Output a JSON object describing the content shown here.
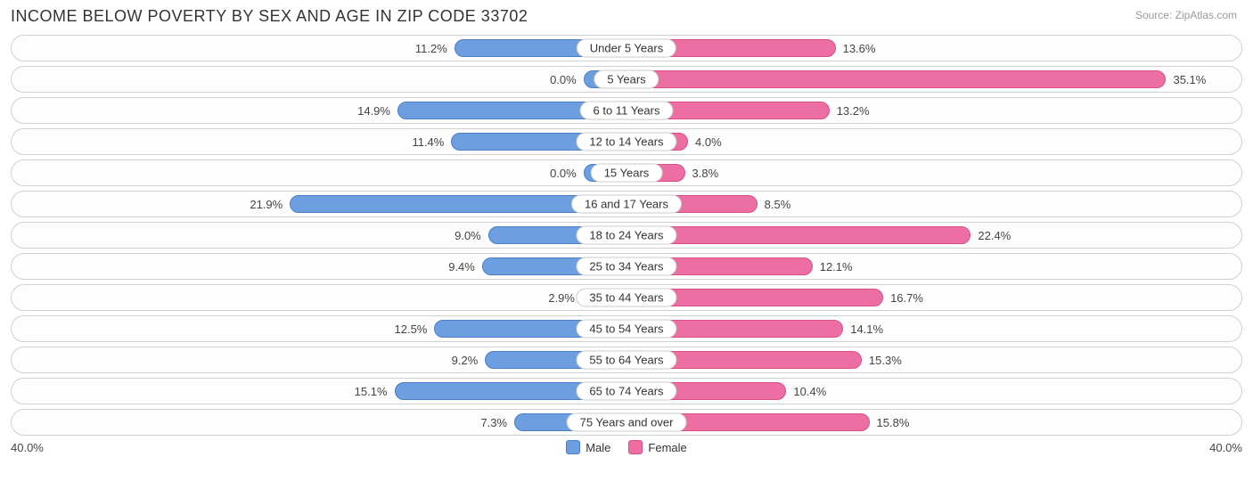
{
  "title": "INCOME BELOW POVERTY BY SEX AND AGE IN ZIP CODE 33702",
  "source": "Source: ZipAtlas.com",
  "chart": {
    "type": "diverging-bar",
    "max_value": 40.0,
    "axis_left_label": "40.0%",
    "axis_right_label": "40.0%",
    "colors": {
      "male_fill": "#6d9fe0",
      "male_border": "#4a7fc7",
      "female_fill": "#ed6ea3",
      "female_border": "#d94f8a",
      "row_border": "#d0d0d0",
      "background": "#ffffff",
      "text": "#444444"
    },
    "legend": [
      {
        "label": "Male",
        "fill": "#6d9fe0",
        "border": "#4a7fc7"
      },
      {
        "label": "Female",
        "fill": "#ed6ea3",
        "border": "#d94f8a"
      }
    ],
    "rows": [
      {
        "category": "Under 5 Years",
        "male": 11.2,
        "female": 13.6
      },
      {
        "category": "5 Years",
        "male": 0.0,
        "female": 35.1
      },
      {
        "category": "6 to 11 Years",
        "male": 14.9,
        "female": 13.2
      },
      {
        "category": "12 to 14 Years",
        "male": 11.4,
        "female": 4.0
      },
      {
        "category": "15 Years",
        "male": 0.0,
        "female": 3.8
      },
      {
        "category": "16 and 17 Years",
        "male": 21.9,
        "female": 8.5
      },
      {
        "category": "18 to 24 Years",
        "male": 9.0,
        "female": 22.4
      },
      {
        "category": "25 to 34 Years",
        "male": 9.4,
        "female": 12.1
      },
      {
        "category": "35 to 44 Years",
        "male": 2.9,
        "female": 16.7
      },
      {
        "category": "45 to 54 Years",
        "male": 12.5,
        "female": 14.1
      },
      {
        "category": "55 to 64 Years",
        "male": 9.2,
        "female": 15.3
      },
      {
        "category": "65 to 74 Years",
        "male": 15.1,
        "female": 10.4
      },
      {
        "category": "75 Years and over",
        "male": 7.3,
        "female": 15.8
      }
    ]
  }
}
